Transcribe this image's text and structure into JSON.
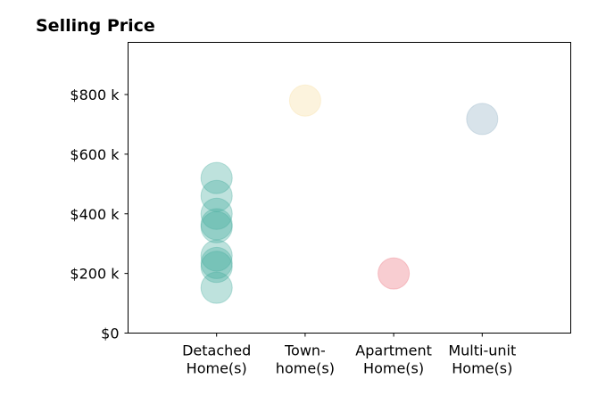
{
  "chart_data": {
    "type": "scatter",
    "title": "Selling Price",
    "xlabel": "",
    "ylabel": "",
    "categories": [
      [
        "Detached",
        "Home(s)"
      ],
      [
        "Town-",
        "home(s)"
      ],
      [
        "Apartment",
        "Home(s)"
      ],
      [
        "Multi-unit",
        "Home(s)"
      ]
    ],
    "y_ticks": [
      {
        "value": 0,
        "label": "$0"
      },
      {
        "value": 200000,
        "label": "$200 k"
      },
      {
        "value": 400000,
        "label": "$400 k"
      },
      {
        "value": 600000,
        "label": "$600 k"
      },
      {
        "value": 800000,
        "label": "$800 k"
      }
    ],
    "ylim": [
      0,
      975000
    ],
    "xlim": [
      -1,
      4
    ],
    "grid": false,
    "series": [
      {
        "category_index": 0,
        "color": "#45ad9e",
        "values": [
          520000,
          460000,
          400000,
          365000,
          355000,
          260000,
          235000,
          222000,
          152000
        ]
      },
      {
        "category_index": 1,
        "color": "#f6dc9f",
        "values": [
          780000
        ]
      },
      {
        "category_index": 2,
        "color": "#ec6f7a",
        "values": [
          200000
        ]
      },
      {
        "category_index": 3,
        "color": "#8faec3",
        "values": [
          718000
        ]
      }
    ],
    "marker_opacity": 0.35
  }
}
